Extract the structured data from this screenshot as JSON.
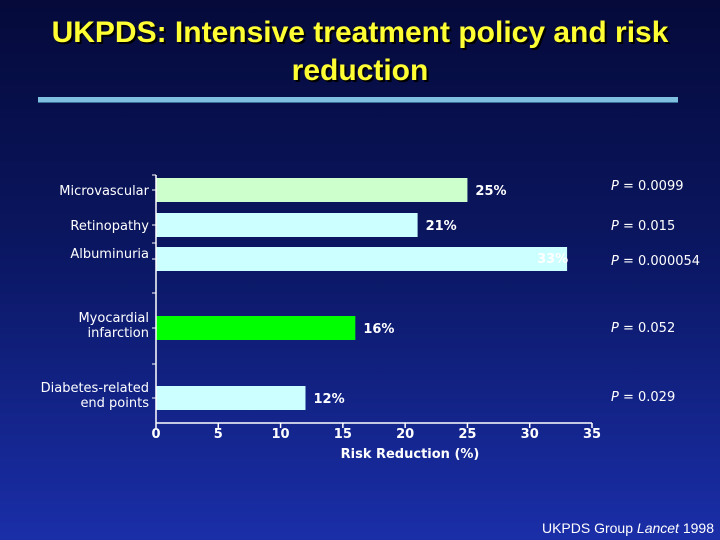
{
  "slide": {
    "title_line1": "UKPDS: Intensive treatment policy and risk",
    "title_line2": "reduction",
    "source_prefix": "UKPDS Group",
    "source_journal": "Lancet",
    "source_year": "1998"
  },
  "chart_data": {
    "type": "bar",
    "orientation": "horizontal",
    "categories": [
      [
        "Microvascular"
      ],
      [
        "Retinopathy"
      ],
      [
        "Albuminuria"
      ],
      [
        "Myocardial",
        "infarction"
      ],
      [
        "Diabetes-related",
        "end points"
      ]
    ],
    "values": [
      25,
      21,
      33,
      16,
      12
    ],
    "value_labels": [
      "25%",
      "21%",
      "33%",
      "16%",
      "12%"
    ],
    "p_values": [
      "0.0099",
      "0.015",
      "0.000054",
      "0.052",
      "0.029"
    ],
    "p_prefix": "P",
    "bar_colors": [
      "#ccffcc",
      "#ccffff",
      "#ccffff",
      "#00ff00",
      "#ccffff"
    ],
    "xlabel": "Risk Reduction (%)",
    "xlim": [
      0,
      35
    ],
    "xticks": [
      0,
      5,
      10,
      15,
      20,
      25,
      30,
      35
    ],
    "grid": false,
    "legend": "none"
  }
}
